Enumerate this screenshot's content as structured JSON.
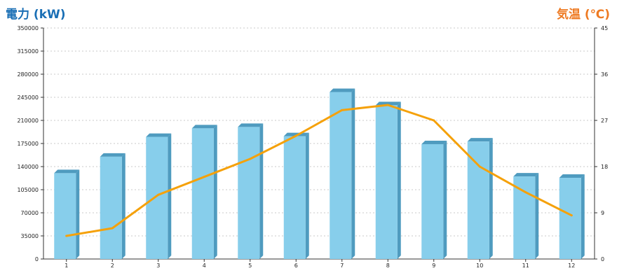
{
  "chart_data": {
    "type": "bar",
    "categories": [
      "1",
      "2",
      "3",
      "4",
      "5",
      "6",
      "7",
      "8",
      "9",
      "10",
      "11",
      "12"
    ],
    "series": [
      {
        "type": "bar",
        "axis": "left",
        "values": [
          130000,
          155000,
          185000,
          198000,
          200000,
          186000,
          253000,
          233000,
          174000,
          178000,
          125000,
          123000
        ],
        "color": "#87ceeb"
      },
      {
        "type": "line",
        "axis": "right",
        "values": [
          4.5,
          6,
          12.5,
          16,
          19.5,
          24,
          29,
          30,
          27,
          18,
          13,
          8.5
        ],
        "color": "#f5a10a"
      }
    ],
    "ylabel": "電力 (kW)",
    "y2label": "気温 (℃)",
    "ylim": [
      0,
      350000
    ],
    "y2lim": [
      0,
      45
    ],
    "yticks": [
      "0",
      "35000",
      "70000",
      "105000",
      "140000",
      "175000",
      "210000",
      "245000",
      "280000",
      "315000",
      "350000"
    ],
    "y2ticks": [
      "0",
      "9",
      "18",
      "27",
      "36",
      "45"
    ],
    "grid": true,
    "colors": {
      "left_title": "#1a6fb5",
      "right_title": "#ee7a22",
      "bar": "#87ceeb",
      "bar_side": "#4f9bbf",
      "line": "#f5a10a"
    }
  }
}
